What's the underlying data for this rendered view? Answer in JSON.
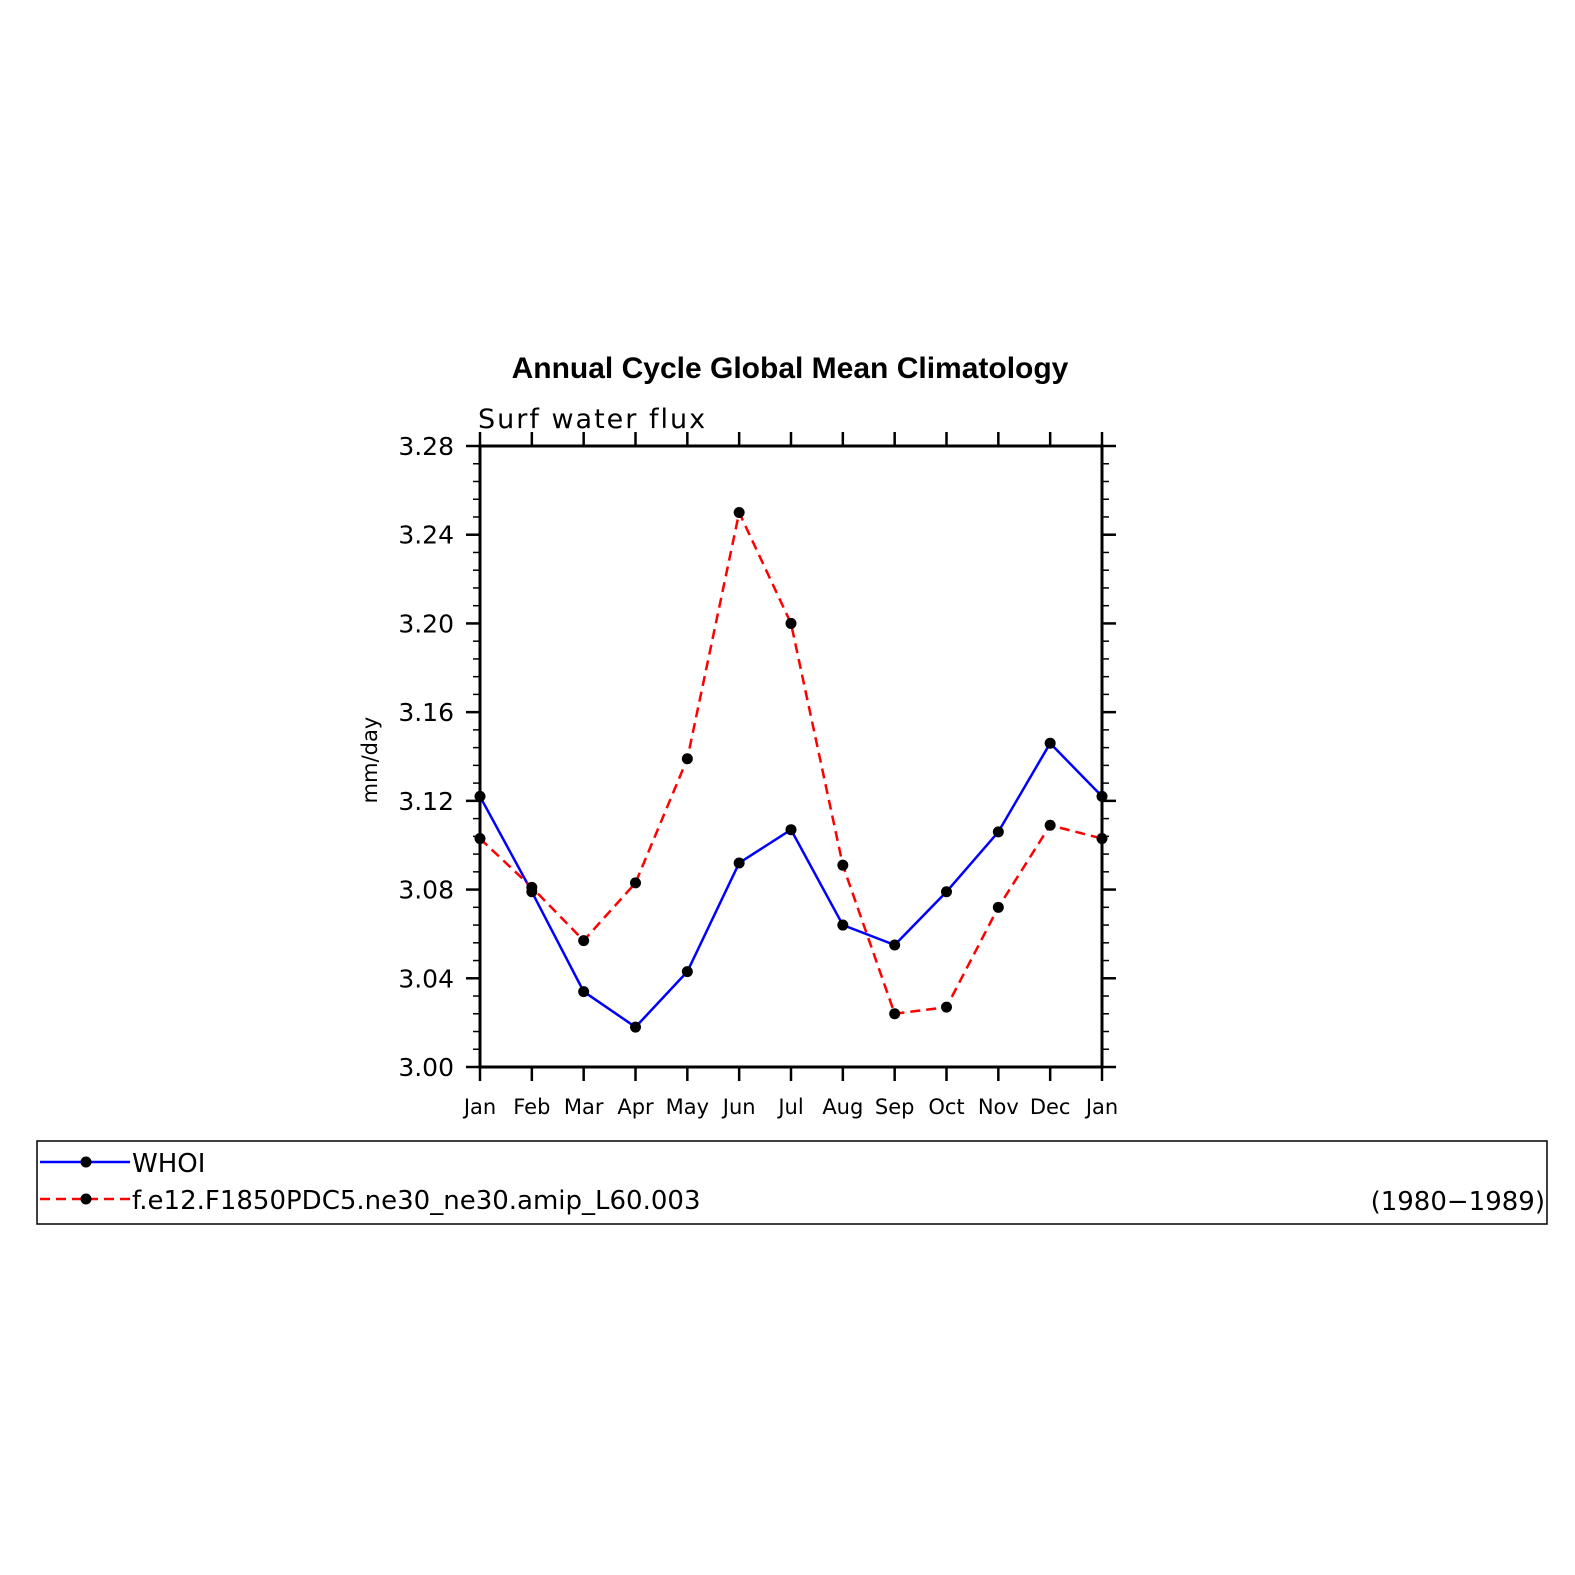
{
  "chart_data": {
    "type": "line",
    "title": "Annual Cycle Global Mean Climatology",
    "subtitle": "Surf water flux",
    "ylabel": "mm/day",
    "xlabel": "",
    "categories": [
      "Jan",
      "Feb",
      "Mar",
      "Apr",
      "May",
      "Jun",
      "Jul",
      "Aug",
      "Sep",
      "Oct",
      "Nov",
      "Dec",
      "Jan"
    ],
    "ylim": [
      3.0,
      3.28
    ],
    "yticks": [
      "3.00",
      "3.04",
      "3.08",
      "3.12",
      "3.16",
      "3.20",
      "3.24",
      "3.28"
    ],
    "grid": false,
    "legend_position": "bottom",
    "series": [
      {
        "name": "WHOI",
        "color": "#0000ff",
        "style": "solid",
        "values": [
          3.122,
          3.079,
          3.034,
          3.018,
          3.043,
          3.092,
          3.107,
          3.064,
          3.055,
          3.079,
          3.106,
          3.146,
          3.122
        ]
      },
      {
        "name": "f.e12.F1850PDC5.ne30_ne30.amip_L60.003",
        "color": "#ff0000",
        "style": "dashed",
        "values": [
          3.103,
          3.081,
          3.057,
          3.083,
          3.139,
          3.25,
          3.2,
          3.091,
          3.024,
          3.027,
          3.072,
          3.109,
          3.103
        ]
      }
    ],
    "legend_note": "(1980−1989)"
  }
}
